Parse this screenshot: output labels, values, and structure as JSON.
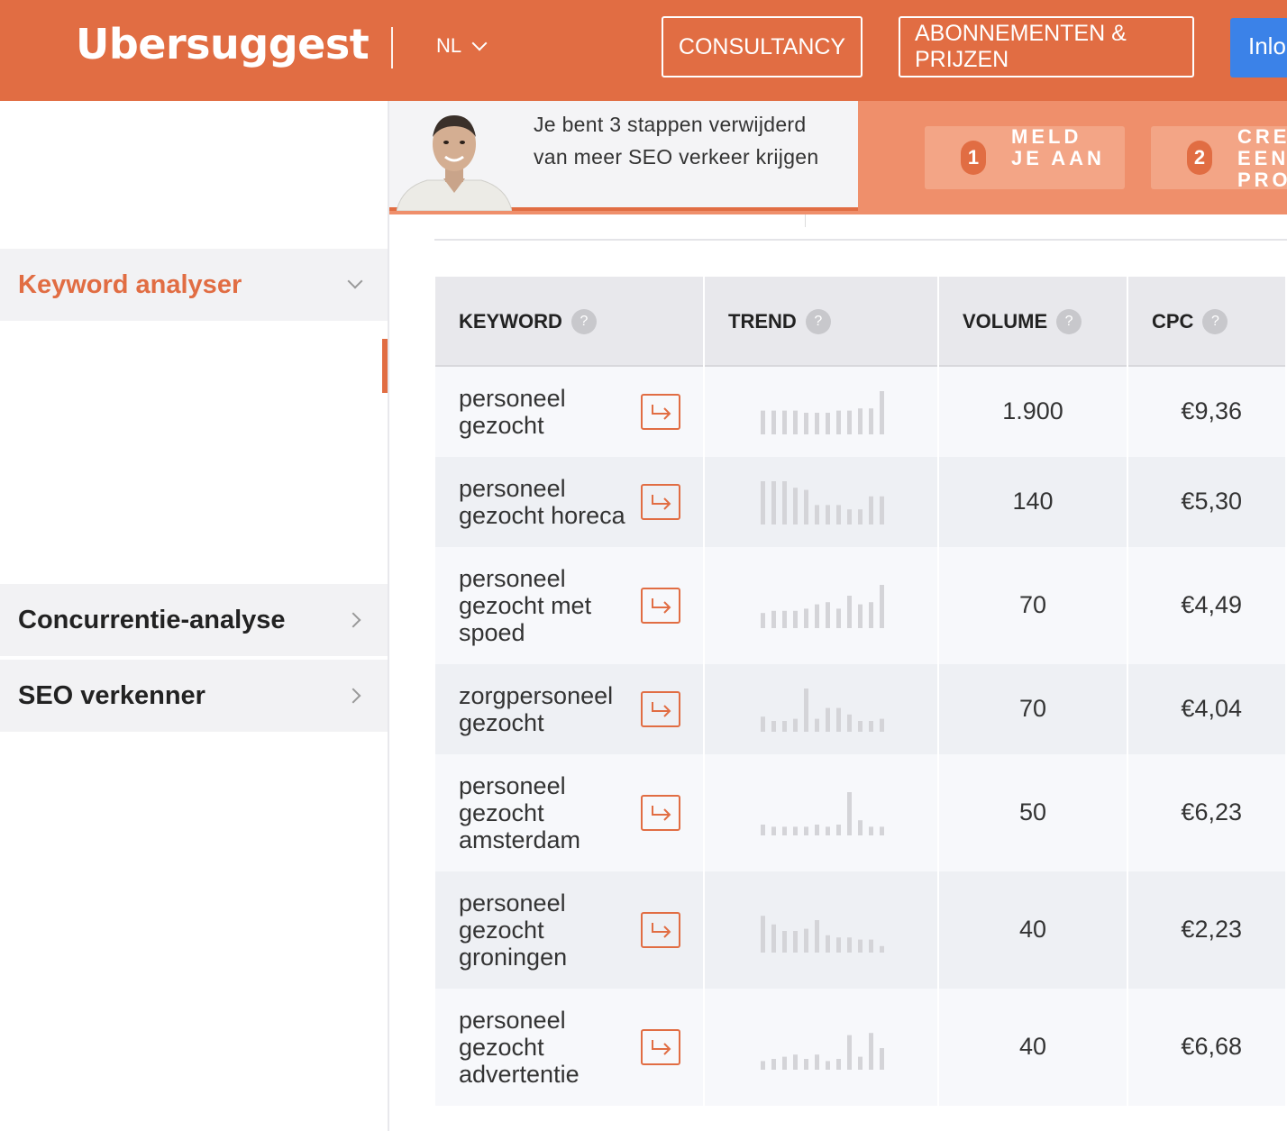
{
  "header": {
    "logo": "Ubersuggest",
    "lang": "NL",
    "consultancy": "CONSULTANCY",
    "subscriptions": "ABONNEMENTEN & PRIJZEN",
    "login": "Inlo"
  },
  "sidebar": {
    "items": [
      {
        "label": "Keyword analyser"
      },
      {
        "label": "Concurrentie-analyse"
      },
      {
        "label": "SEO verkenner"
      }
    ]
  },
  "banner": {
    "text": "Je bent 3 stappen verwijderd van meer SEO verkeer krijgen",
    "steps": [
      {
        "num": "1",
        "label": "MELD JE AAN"
      },
      {
        "num": "2",
        "label": "CRE EEN PRO"
      }
    ]
  },
  "table": {
    "headers": [
      "KEYWORD",
      "TREND",
      "VOLUME",
      "CPC"
    ],
    "rows": [
      {
        "keyword": "personeel gezocht",
        "volume": "1.900",
        "cpc": "€9,36",
        "trend": [
          0.55,
          0.55,
          0.55,
          0.55,
          0.5,
          0.5,
          0.5,
          0.55,
          0.55,
          0.6,
          0.6,
          1.0
        ]
      },
      {
        "keyword": "personeel gezocht horeca",
        "volume": "140",
        "cpc": "€5,30",
        "trend": [
          1.0,
          1.0,
          1.0,
          0.85,
          0.8,
          0.45,
          0.45,
          0.45,
          0.35,
          0.35,
          0.65,
          0.65
        ]
      },
      {
        "keyword": "personeel gezocht met spoed",
        "volume": "70",
        "cpc": "€4,49",
        "trend": [
          0.35,
          0.4,
          0.4,
          0.4,
          0.45,
          0.55,
          0.6,
          0.45,
          0.75,
          0.55,
          0.6,
          1.0
        ]
      },
      {
        "keyword": "zorgpersoneel gezocht",
        "volume": "70",
        "cpc": "€4,04",
        "trend": [
          0.35,
          0.25,
          0.25,
          0.3,
          1.0,
          0.3,
          0.55,
          0.55,
          0.4,
          0.25,
          0.25,
          0.3
        ]
      },
      {
        "keyword": "personeel gezocht amsterdam",
        "volume": "50",
        "cpc": "€6,23",
        "trend": [
          0.25,
          0.2,
          0.2,
          0.2,
          0.2,
          0.25,
          0.2,
          0.25,
          1.0,
          0.35,
          0.2,
          0.2
        ]
      },
      {
        "keyword": "personeel gezocht groningen",
        "volume": "40",
        "cpc": "€2,23",
        "trend": [
          0.85,
          0.65,
          0.5,
          0.5,
          0.55,
          0.75,
          0.4,
          0.35,
          0.35,
          0.3,
          0.3,
          0.15
        ]
      },
      {
        "keyword": "personeel gezocht advertentie",
        "volume": "40",
        "cpc": "€6,68",
        "trend": [
          0.2,
          0.25,
          0.3,
          0.35,
          0.25,
          0.35,
          0.2,
          0.25,
          0.8,
          0.3,
          0.85,
          0.5
        ]
      }
    ]
  },
  "colors": {
    "brand": "#e16d43",
    "login": "#3b82e8",
    "trend_bar": "#d4d4d8"
  },
  "icons": [
    "chevron-down-icon",
    "chevron-right-icon",
    "arrow-right-icon",
    "help-icon"
  ]
}
